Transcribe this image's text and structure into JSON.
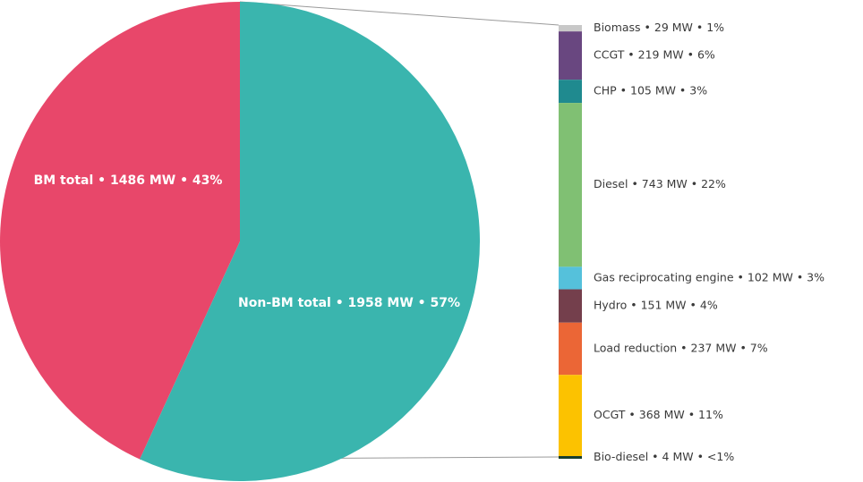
{
  "chart_data": {
    "type": "pie",
    "title": "",
    "pie": {
      "slices": [
        {
          "label": "BM total",
          "value": 1486,
          "unit": "MW",
          "percent": "43%",
          "text": "BM total • 1486 MW • 43%",
          "color": "#E8476A"
        },
        {
          "label": "Non-BM total",
          "value": 1958,
          "unit": "MW",
          "percent": "57%",
          "text": "Non-BM total • 1958 MW • 57%",
          "color": "#3AB5AE"
        }
      ],
      "exploded_slice": "Non-BM total"
    },
    "breakdown": {
      "type": "stacked-bar",
      "of": "Non-BM total",
      "segments": [
        {
          "label": "Biomass",
          "value": 29,
          "percent": "1%",
          "text": "Biomass • 29 MW • 1%",
          "color": "#C8C8C8"
        },
        {
          "label": "CCGT",
          "value": 219,
          "percent": "6%",
          "text": "CCGT • 219 MW • 6%",
          "color": "#694780"
        },
        {
          "label": "CHP",
          "value": 105,
          "percent": "3%",
          "text": "CHP • 105 MW • 3%",
          "color": "#1F8A8F"
        },
        {
          "label": "Diesel",
          "value": 743,
          "percent": "22%",
          "text": "Diesel • 743 MW • 22%",
          "color": "#80C073"
        },
        {
          "label": "Gas reciprocating engine",
          "value": 102,
          "percent": "3%",
          "text": "Gas reciprocating engine • 102 MW • 3%",
          "color": "#55C1DB"
        },
        {
          "label": "Hydro",
          "value": 151,
          "percent": "4%",
          "text": "Hydro • 151 MW • 4%",
          "color": "#743F4C"
        },
        {
          "label": "Load reduction",
          "value": 237,
          "percent": "7%",
          "text": "Load reduction • 237 MW • 7%",
          "color": "#EB6636"
        },
        {
          "label": "OCGT",
          "value": 368,
          "percent": "11%",
          "text": "OCGT • 368 MW • 11%",
          "color": "#FCC200"
        },
        {
          "label": "Bio-diesel",
          "value": 4,
          "percent": "<1%",
          "text": "Bio-diesel • 4 MW • <1%",
          "color": "#173D2E"
        }
      ]
    },
    "connector_color": "#9A9A9A"
  }
}
